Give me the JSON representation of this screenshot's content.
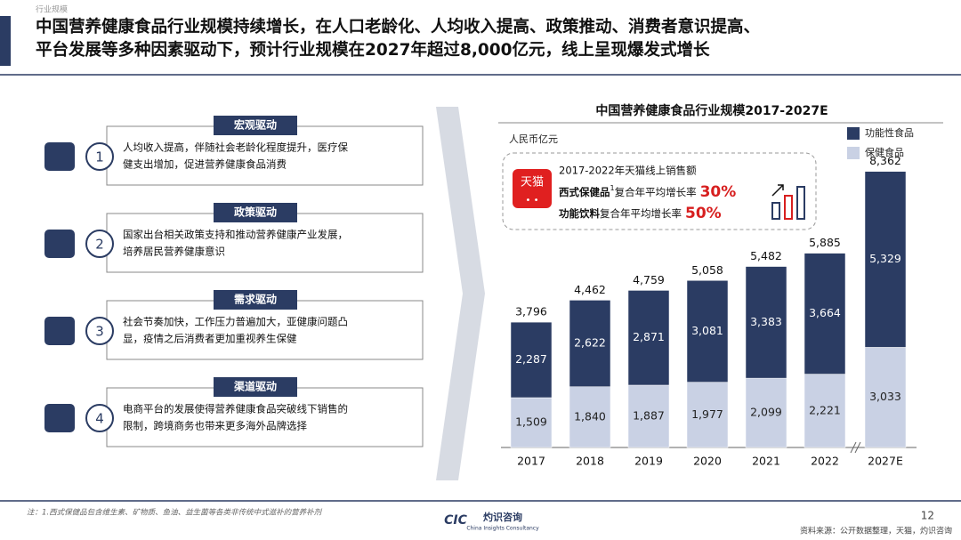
{
  "section": "行业规模",
  "header": {
    "title_lines": [
      "中国营养健康食品行业规模持续增长，在人口老龄化、人均收入提高、政策推动、消费者意识提高、",
      "平台发展等多种因素驱动下，预计行业规模在2027年超过8,000亿元，线上呈现爆发式增长"
    ]
  },
  "panels": [
    {
      "number": 1,
      "title": "宏观驱动",
      "lines": [
        "人均收入提高，伴随社会老龄化程度提升，医疗保",
        "健支出增加，促进营养健康食品消费"
      ]
    },
    {
      "number": 2,
      "title": "政策驱动",
      "lines": [
        "国家出台相关政策支持和推动营养健康产业发展，",
        "培养居民营养健康意识"
      ]
    },
    {
      "number": 3,
      "title": "需求驱动",
      "lines": [
        "社会节奏加快，工作压力普遍加大，亚健康问题凸",
        "显，疫情之后消费者更加重视养生保健"
      ]
    },
    {
      "number": 4,
      "title": "渠道驱动",
      "lines": [
        "电商平台的发展使得营养健康食品突破线下销售的",
        "限制，跨境商务也带来更多海外品牌选择"
      ]
    }
  ],
  "callout": {
    "badge": "天猫",
    "title": "2017-2022年天猫线上销售额",
    "rows": [
      {
        "name": "西式保健品",
        "note": "1",
        "label": "复合年平均增长率",
        "value": 30,
        "value_label": "30%"
      },
      {
        "name": "功能饮料",
        "label": "复合年平均增长率",
        "value": 50,
        "value_label": "50%"
      }
    ]
  },
  "chart_data": {
    "type": "stacked_bar",
    "title": "中国营养健康食品行业规模2017-2027E",
    "unit": "人民币亿元",
    "categories": [
      "2017",
      "2018",
      "2019",
      "2020",
      "2021",
      "2022",
      "2027E"
    ],
    "series": [
      {
        "name": "保健食品",
        "color": "#c9d1e4",
        "values": [
          1509,
          1840,
          1887,
          1977,
          2099,
          2221,
          3033
        ]
      },
      {
        "name": "功能性食品",
        "color": "#2b3c63",
        "values": [
          2287,
          2622,
          2871,
          3081,
          3383,
          3664,
          5329
        ]
      }
    ],
    "totals": [
      3796,
      4462,
      4759,
      5058,
      5482,
      5885,
      8362
    ],
    "value_labels": [
      [
        "1,509",
        "1,840",
        "1,887",
        "1,977",
        "2,099",
        "2,221",
        "3,033"
      ],
      [
        "2,287",
        "2,622",
        "2,871",
        "3,081",
        "3,383",
        "3,664",
        "5,329"
      ]
    ],
    "total_labels": [
      "3,796",
      "4,462",
      "4,759",
      "5,058",
      "5,482",
      "5,885",
      "8,362"
    ],
    "ylim": [
      0,
      9000
    ],
    "legend": "top-right"
  },
  "footer": {
    "note": "注：1.西式保健品包含维生素、矿物质、鱼油、益生菌等各类非传统中式滋补的营养补剂",
    "page": "12",
    "source": "资料来源：公开数据整理，天猫，灼识咨询",
    "logo_abbr": "CIC",
    "logo_name": "灼识咨询",
    "logo_en": "China Insights Consultancy"
  }
}
